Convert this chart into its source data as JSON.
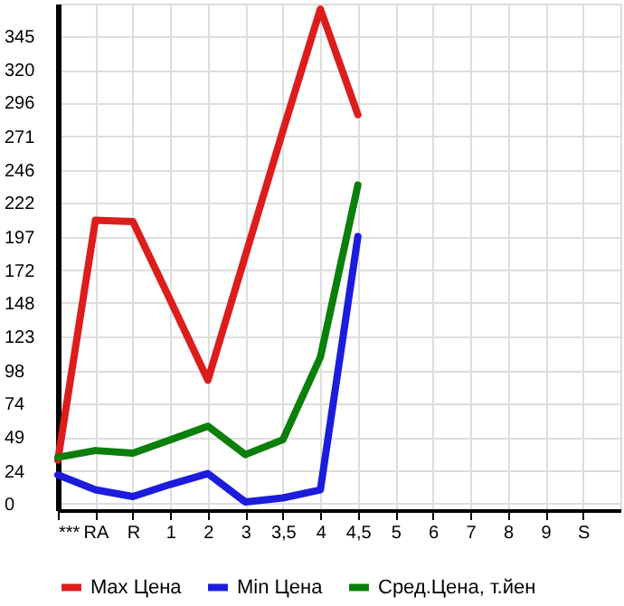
{
  "chart_data": {
    "type": "line",
    "categories": [
      "***",
      "RA",
      "R",
      "1",
      "2",
      "3",
      "3,5",
      "4",
      "4,5",
      "5",
      "6",
      "7",
      "8",
      "9",
      "S"
    ],
    "series": [
      {
        "name": "Max Цена",
        "color": "#dd1c1c",
        "values": [
          32,
          209,
          208,
          150,
          91,
          183,
          275,
          365,
          287,
          null,
          null,
          null,
          null,
          null,
          null
        ]
      },
      {
        "name": "Min Цена",
        "color": "#1c1cdd",
        "values": [
          21,
          10,
          5,
          14,
          22,
          1,
          4,
          10,
          197,
          null,
          null,
          null,
          null,
          null,
          null
        ]
      },
      {
        "name": "Сред.Цена, т.йен",
        "color": "#0a7f0a",
        "values": [
          34,
          39,
          37,
          47,
          57,
          36,
          47,
          108,
          235,
          null,
          null,
          null,
          null,
          null,
          null
        ]
      }
    ],
    "ylim": [
      -5,
      369
    ],
    "yticks": [
      0,
      24,
      49,
      74,
      98,
      123,
      148,
      172,
      197,
      222,
      246,
      271,
      296,
      320,
      345
    ],
    "grid": true,
    "legend": "bottom",
    "marker": "none",
    "line_style": "solid"
  }
}
